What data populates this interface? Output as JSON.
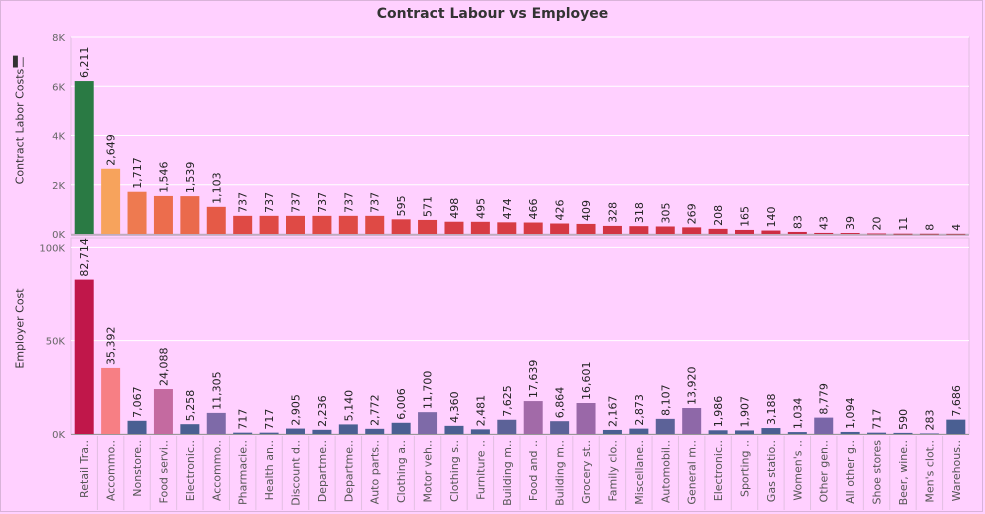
{
  "chart_data": {
    "type": "bar",
    "title": "Contract Labour vs Employee",
    "categories": [
      "Retail Tra..",
      "Accommo..",
      "Nonstore..",
      "Food servi..",
      "Electronic..",
      "Accommo..",
      "Pharmacie..",
      "Health an..",
      "Discount d..",
      "Departme..",
      "Departme..",
      "Auto parts..",
      "Clothing a..",
      "Motor veh..",
      "Clothing s..",
      "Furniture ..",
      "Building m..",
      "Food and ..",
      "Building m..",
      "Grocery st..",
      "Family clo..",
      "Miscellane..",
      "Automobil..",
      "General m..",
      "Electronic..",
      "Sporting ..",
      "Gas statio..",
      "Women's ..",
      "Other gen..",
      "All other g..",
      "Shoe stores",
      "Beer, wine..",
      "Men's clot..",
      "Warehous.."
    ],
    "panels": [
      {
        "ylabel": "Contract Labor Costs",
        "ylim": [
          0,
          8000
        ],
        "ticks": [
          0,
          2000,
          4000,
          6000,
          8000
        ],
        "tick_labels": [
          "0K",
          "2K",
          "4K",
          "6K",
          "8K"
        ],
        "values": [
          6211,
          2649,
          1717,
          1546,
          1539,
          1103,
          737,
          737,
          737,
          737,
          737,
          737,
          595,
          571,
          498,
          495,
          474,
          466,
          426,
          409,
          328,
          318,
          305,
          269,
          208,
          165,
          140,
          83,
          43,
          39,
          20,
          11,
          8,
          4
        ],
        "labels": [
          "6,211",
          "2,649",
          "1,717",
          "1,546",
          "1,539",
          "1,103",
          "737",
          "737",
          "737",
          "737",
          "737",
          "737",
          "595",
          "571",
          "498",
          "495",
          "474",
          "466",
          "426",
          "409",
          "328",
          "318",
          "305",
          "269",
          "208",
          "165",
          "140",
          "83",
          "43",
          "39",
          "20",
          "11",
          "8",
          "4"
        ],
        "colors": [
          "#2a7a44",
          "#f7a35c",
          "#ee7a50",
          "#ec6d4d",
          "#ea6a4c",
          "#e55a47",
          "#df4a45",
          "#df4a45",
          "#df4a45",
          "#df4a45",
          "#df4a45",
          "#df4a45",
          "#da4144",
          "#da4144",
          "#d73c44",
          "#d73c44",
          "#d73c44",
          "#d73c44",
          "#d53843",
          "#d53843",
          "#d23443",
          "#d23443",
          "#d23443",
          "#d13243",
          "#cf3043",
          "#ce2e43",
          "#cd2d43",
          "#cb2a43",
          "#c92843",
          "#c92843",
          "#c82743",
          "#c82743",
          "#c82743",
          "#c82743"
        ]
      },
      {
        "ylabel": "Employer Cost",
        "ylim": [
          0,
          105000
        ],
        "ticks": [
          0,
          50000,
          100000
        ],
        "tick_labels": [
          "0K",
          "50K",
          "100K"
        ],
        "values": [
          82714,
          35392,
          7067,
          24088,
          5258,
          11305,
          717,
          717,
          2905,
          2236,
          5140,
          2772,
          6006,
          11700,
          4360,
          2481,
          7625,
          17639,
          6864,
          16601,
          2167,
          2873,
          8107,
          13920,
          1986,
          1907,
          3188,
          1034,
          8779,
          1094,
          717,
          590,
          283,
          7686
        ],
        "labels": [
          "82,714",
          "35,392",
          "7,067",
          "24,088",
          "5,258",
          "11,305",
          "717",
          "717",
          "2,905",
          "2,236",
          "5,140",
          "2,772",
          "6,006",
          "11,700",
          "4,360",
          "2,481",
          "7,625",
          "17,639",
          "6,864",
          "16,601",
          "2,167",
          "2,873",
          "8,107",
          "13,920",
          "1,986",
          "1,907",
          "3,188",
          "1,034",
          "8,779",
          "1,094",
          "717",
          "590",
          "283",
          "7,686"
        ],
        "colors": [
          "#c0174a",
          "#f77f84",
          "#4a5f92",
          "#c46aa0",
          "#4a5f92",
          "#7e6aa8",
          "#4a5f92",
          "#4a5f92",
          "#4a5f92",
          "#4a5f92",
          "#4a5f92",
          "#4a5f92",
          "#4a5f92",
          "#7e6aa8",
          "#4a5f92",
          "#4a5f92",
          "#5c6298",
          "#a26aa8",
          "#5c6298",
          "#9a68a8",
          "#4a5f92",
          "#4a5f92",
          "#5c6298",
          "#8e68a8",
          "#4a5f92",
          "#4a5f92",
          "#4a5f92",
          "#4a5f92",
          "#7a66a8",
          "#4a5f92",
          "#4a5f92",
          "#4a5f92",
          "#4a5f92",
          "#4a5f92"
        ]
      }
    ],
    "grid": true
  }
}
